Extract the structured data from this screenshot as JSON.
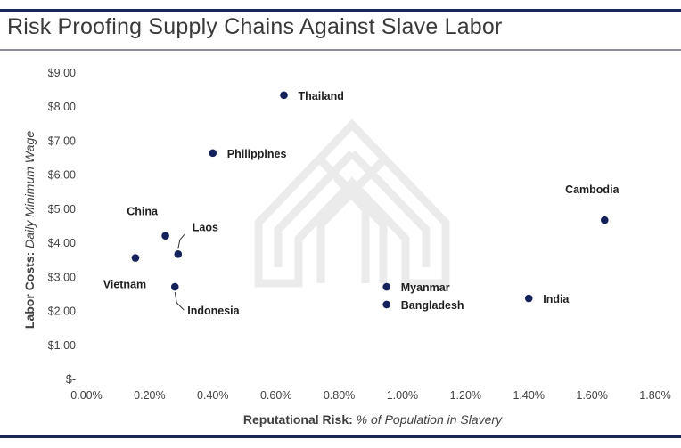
{
  "chart_data": {
    "type": "scatter",
    "title": "Risk Proofing Supply Chains Against Slave Labor",
    "xlabel_bold": "Reputational Risk:",
    "xlabel_italic": "% of Population in Slavery",
    "ylabel_bold": "Labor Costs:",
    "ylabel_italic": "Daily Minimum Wage",
    "xlim": [
      0,
      0.018
    ],
    "ylim": [
      0,
      9
    ],
    "x_ticks": [
      0,
      0.002,
      0.004,
      0.006,
      0.008,
      0.01,
      0.012,
      0.014,
      0.016,
      0.018
    ],
    "x_tick_labels": [
      "0.00%",
      "0.20%",
      "0.40%",
      "0.60%",
      "0.80%",
      "1.00%",
      "1.20%",
      "1.40%",
      "1.60%",
      "1.80%"
    ],
    "y_ticks": [
      0,
      1,
      2,
      3,
      4,
      5,
      6,
      7,
      8,
      9
    ],
    "y_tick_labels": [
      "$-",
      "$1.00",
      "$2.00",
      "$3.00",
      "$4.00",
      "$5.00",
      "$6.00",
      "$7.00",
      "$8.00",
      "$9.00"
    ],
    "grid": false,
    "marker_color": "#14205a",
    "points": [
      {
        "label": "Thailand",
        "x": 0.00625,
        "y": 8.35
      },
      {
        "label": "Philippines",
        "x": 0.004,
        "y": 6.65
      },
      {
        "label": "Cambodia",
        "x": 0.0164,
        "y": 4.68
      },
      {
        "label": "China",
        "x": 0.0025,
        "y": 4.22
      },
      {
        "label": "Laos",
        "x": 0.0029,
        "y": 3.68
      },
      {
        "label": "Vietnam",
        "x": 0.00155,
        "y": 3.57
      },
      {
        "label": "Indonesia",
        "x": 0.0028,
        "y": 2.72
      },
      {
        "label": "Myanmar",
        "x": 0.0095,
        "y": 2.72
      },
      {
        "label": "Bangladesh",
        "x": 0.0095,
        "y": 2.2
      },
      {
        "label": "India",
        "x": 0.014,
        "y": 2.38
      }
    ]
  }
}
